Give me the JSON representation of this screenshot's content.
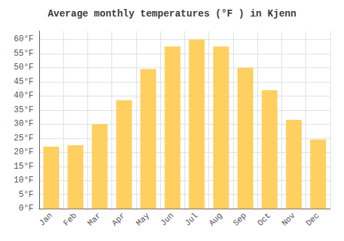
{
  "chart_data": {
    "type": "bar",
    "title": "Average monthly temperatures (°F ) in Kjenn",
    "categories": [
      "Jan",
      "Feb",
      "Mar",
      "Apr",
      "May",
      "Jun",
      "Jul",
      "Aug",
      "Sep",
      "Oct",
      "Nov",
      "Dec"
    ],
    "values": [
      22,
      22.5,
      30,
      38.5,
      49.5,
      57.5,
      60,
      57.5,
      50,
      42,
      31.5,
      24.5
    ],
    "color": "#FFD060",
    "ylim": [
      0,
      63
    ],
    "yticks": [
      {
        "value": 0,
        "label": "0°F"
      },
      {
        "value": 5,
        "label": "5°F"
      },
      {
        "value": 10,
        "label": "10°F"
      },
      {
        "value": 15,
        "label": "15°F"
      },
      {
        "value": 20,
        "label": "20°F"
      },
      {
        "value": 25,
        "label": "25°F"
      },
      {
        "value": 30,
        "label": "30°F"
      },
      {
        "value": 35,
        "label": "35°F"
      },
      {
        "value": 40,
        "label": "40°F"
      },
      {
        "value": 45,
        "label": "45°F"
      },
      {
        "value": 50,
        "label": "50°F"
      },
      {
        "value": 55,
        "label": "55°F"
      },
      {
        "value": 60,
        "label": "60°F"
      }
    ],
    "grid": true
  }
}
